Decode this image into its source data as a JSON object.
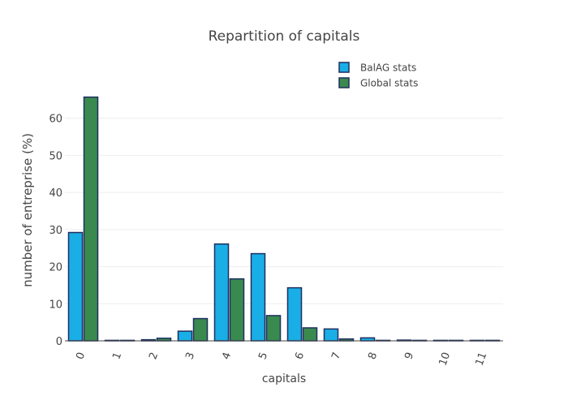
{
  "chart_data": {
    "type": "bar",
    "title": "Repartition of capitals",
    "xlabel": "capitals",
    "ylabel": "number of entreprise (%)",
    "categories": [
      "0",
      "1",
      "2",
      "3",
      "4",
      "5",
      "6",
      "7",
      "8",
      "9",
      "10",
      "11"
    ],
    "series": [
      {
        "name": "BalAG stats",
        "color": "#1aaee6",
        "values": [
          29.2,
          0.1,
          0.3,
          2.6,
          26.1,
          23.5,
          14.3,
          3.2,
          0.8,
          0.2,
          0.1,
          0.1
        ]
      },
      {
        "name": "Global stats",
        "color": "#3a8a50",
        "values": [
          65.7,
          0.1,
          0.7,
          6.0,
          16.7,
          6.8,
          3.5,
          0.5,
          0.1,
          0.1,
          0.1,
          0.0
        ]
      }
    ],
    "ylim": [
      0,
      70
    ],
    "yticks": [
      0,
      10,
      20,
      30,
      40,
      50,
      60
    ],
    "grid": true,
    "legend_position": "top-right",
    "bar_outline_color": "#1f2f5f"
  }
}
